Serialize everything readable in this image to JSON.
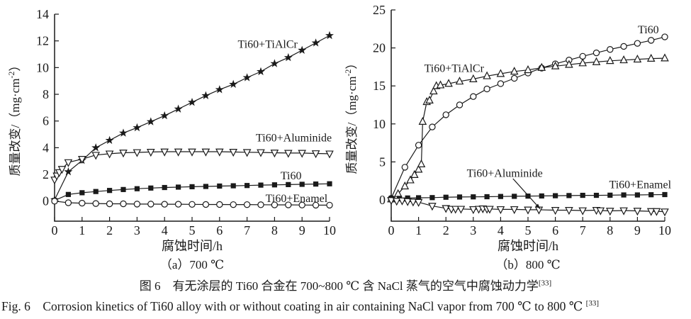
{
  "colors": {
    "ink": "#1a1a1a",
    "background": "#ffffff"
  },
  "captions": {
    "cn": {
      "text": "图 6　有无涂层的 Ti60 合金在 700~800 ℃ 含 NaCl 蒸气的空气中腐蚀动力学",
      "sup": "[33]"
    },
    "en": {
      "text": "Fig. 6　Corrosion kinetics of Ti60 alloy with or without coating in air containing NaCl vapor from 700 ℃ to 800 ℃ ",
      "sup": "[33]"
    }
  },
  "chart_data": [
    {
      "id": "a",
      "type": "line",
      "title": "（a）700 ℃",
      "xlabel": "腐蚀时间/h",
      "ylabel": {
        "main": "质量改变/（mg·cm",
        "sup": "-2",
        "end": "）"
      },
      "xlim": [
        0,
        10
      ],
      "ylim": [
        -1.5,
        14
      ],
      "xticks": [
        0,
        1,
        2,
        3,
        4,
        5,
        6,
        7,
        8,
        9,
        10
      ],
      "yticks": [
        0,
        2,
        4,
        6,
        8,
        10,
        12,
        14
      ],
      "grid": false,
      "legend_position": "in-plot-text-labels",
      "series": [
        {
          "name": "Ti60+TiAlCr",
          "marker": "star",
          "fill": "filled",
          "points": [
            [
              0,
              0.1
            ],
            [
              0.5,
              2.2
            ],
            [
              1,
              3.05
            ],
            [
              1.5,
              4.0
            ],
            [
              2,
              4.55
            ],
            [
              2.5,
              5.1
            ],
            [
              3,
              5.5
            ],
            [
              3.5,
              5.95
            ],
            [
              4,
              6.4
            ],
            [
              4.5,
              6.9
            ],
            [
              5,
              7.4
            ],
            [
              5.5,
              7.9
            ],
            [
              6,
              8.35
            ],
            [
              6.5,
              8.75
            ],
            [
              7,
              9.25
            ],
            [
              7.5,
              9.7
            ],
            [
              8,
              10.3
            ],
            [
              8.5,
              10.75
            ],
            [
              9,
              11.3
            ],
            [
              9.5,
              11.85
            ],
            [
              10,
              12.4
            ]
          ]
        },
        {
          "name": "Ti60+Aluminide",
          "marker": "triangle-down",
          "fill": "open",
          "points": [
            [
              0,
              1.6
            ],
            [
              0.08,
              1.9
            ],
            [
              0.17,
              2.15
            ],
            [
              0.27,
              2.4
            ],
            [
              0.5,
              2.9
            ],
            [
              1,
              3.15
            ],
            [
              1.5,
              3.45
            ],
            [
              2,
              3.55
            ],
            [
              2.5,
              3.62
            ],
            [
              3,
              3.65
            ],
            [
              3.5,
              3.68
            ],
            [
              4,
              3.7
            ],
            [
              4.5,
              3.7
            ],
            [
              5,
              3.7
            ],
            [
              5.5,
              3.7
            ],
            [
              6,
              3.7
            ],
            [
              6.5,
              3.68
            ],
            [
              7,
              3.66
            ],
            [
              7.5,
              3.65
            ],
            [
              8,
              3.62
            ],
            [
              8.5,
              3.6
            ],
            [
              9,
              3.6
            ],
            [
              9.5,
              3.57
            ],
            [
              10,
              3.55
            ]
          ]
        },
        {
          "name": "Ti60",
          "marker": "square",
          "fill": "filled",
          "points": [
            [
              0,
              0.05
            ],
            [
              0.5,
              0.5
            ],
            [
              1,
              0.63
            ],
            [
              1.5,
              0.72
            ],
            [
              2,
              0.8
            ],
            [
              2.5,
              0.87
            ],
            [
              3,
              0.93
            ],
            [
              3.5,
              0.98
            ],
            [
              4,
              1.02
            ],
            [
              4.5,
              1.05
            ],
            [
              5,
              1.08
            ],
            [
              5.5,
              1.1
            ],
            [
              6,
              1.13
            ],
            [
              6.5,
              1.15
            ],
            [
              7,
              1.17
            ],
            [
              7.5,
              1.2
            ],
            [
              8,
              1.22
            ],
            [
              8.5,
              1.24
            ],
            [
              9,
              1.26
            ],
            [
              9.5,
              1.28
            ],
            [
              10,
              1.3
            ]
          ]
        },
        {
          "name": "Ti60+Enamel",
          "marker": "circle",
          "fill": "open",
          "points": [
            [
              0,
              0.0
            ],
            [
              0.5,
              -0.12
            ],
            [
              1,
              -0.15
            ],
            [
              1.5,
              -0.18
            ],
            [
              2,
              -0.2
            ],
            [
              2.5,
              -0.2
            ],
            [
              3,
              -0.22
            ],
            [
              3.5,
              -0.22
            ],
            [
              4,
              -0.23
            ],
            [
              4.5,
              -0.23
            ],
            [
              5,
              -0.24
            ],
            [
              5.5,
              -0.25
            ],
            [
              6,
              -0.25
            ],
            [
              6.5,
              -0.26
            ],
            [
              7,
              -0.26
            ],
            [
              7.5,
              -0.27
            ],
            [
              8,
              -0.28
            ],
            [
              8.5,
              -0.28
            ],
            [
              9,
              -0.29
            ],
            [
              9.5,
              -0.3
            ],
            [
              10,
              -0.3
            ]
          ]
        }
      ],
      "annotations": [
        {
          "text": "Ti60+TiAlCr",
          "x": 7.75,
          "y": 11.75
        },
        {
          "text": "Ti60+Aluminide",
          "x": 8.7,
          "y": 4.75
        },
        {
          "text": "Ti60",
          "x": 8.6,
          "y": 1.9
        },
        {
          "text": "Ti60+Enamel",
          "x": 8.8,
          "y": 0.2
        }
      ]
    },
    {
      "id": "b",
      "type": "line",
      "title": "（b）800 ℃",
      "xlabel": "腐蚀时间/h",
      "ylabel": {
        "main": "质量改变/（mg·cm",
        "sup": "-2",
        "end": "）"
      },
      "xlim": [
        0,
        10
      ],
      "ylim": [
        -2.8,
        25
      ],
      "xticks": [
        0,
        1,
        2,
        3,
        4,
        5,
        6,
        7,
        8,
        9,
        10
      ],
      "yticks": [
        0,
        5,
        10,
        15,
        20,
        25
      ],
      "grid": false,
      "legend_position": "in-plot-text-labels",
      "series": [
        {
          "name": "Ti60",
          "marker": "circle",
          "fill": "open",
          "points": [
            [
              0,
              0.2
            ],
            [
              0.5,
              4.3
            ],
            [
              1,
              7.2
            ],
            [
              1.5,
              9.6
            ],
            [
              2,
              11.2
            ],
            [
              2.5,
              12.5
            ],
            [
              3,
              13.6
            ],
            [
              3.5,
              14.6
            ],
            [
              4,
              15.3
            ],
            [
              4.5,
              16.0
            ],
            [
              5,
              16.7
            ],
            [
              5.5,
              17.35
            ],
            [
              6,
              17.9
            ],
            [
              6.5,
              18.4
            ],
            [
              7,
              18.9
            ],
            [
              7.5,
              19.35
            ],
            [
              8,
              19.8
            ],
            [
              8.5,
              20.2
            ],
            [
              9,
              20.6
            ],
            [
              9.5,
              21.0
            ],
            [
              10,
              21.45
            ]
          ]
        },
        {
          "name": "Ti60+TiAlCr",
          "marker": "triangle-up",
          "fill": "open",
          "points": [
            [
              0,
              0.1
            ],
            [
              0.25,
              0.8
            ],
            [
              0.5,
              1.8
            ],
            [
              0.7,
              2.6
            ],
            [
              0.85,
              3.3
            ],
            [
              1.0,
              4.0
            ],
            [
              1.1,
              4.7
            ],
            [
              1.15,
              10.3
            ],
            [
              1.3,
              12.9
            ],
            [
              1.4,
              13.1
            ],
            [
              1.55,
              14.3
            ],
            [
              1.65,
              15.0
            ],
            [
              1.8,
              15.1
            ],
            [
              2.1,
              15.3
            ],
            [
              2.5,
              15.6
            ],
            [
              3,
              15.9
            ],
            [
              3.5,
              16.3
            ],
            [
              4,
              16.6
            ],
            [
              4.5,
              16.9
            ],
            [
              5,
              17.1
            ],
            [
              5.5,
              17.4
            ],
            [
              6,
              17.6
            ],
            [
              6.5,
              17.8
            ],
            [
              7,
              18.0
            ],
            [
              7.5,
              18.15
            ],
            [
              8,
              18.3
            ],
            [
              8.5,
              18.4
            ],
            [
              9,
              18.5
            ],
            [
              9.5,
              18.6
            ],
            [
              10,
              18.65
            ]
          ]
        },
        {
          "name": "Ti60+Enamel",
          "marker": "square",
          "fill": "filled",
          "points": [
            [
              0,
              0.2
            ],
            [
              0.3,
              0.2
            ],
            [
              0.6,
              0.25
            ],
            [
              1,
              0.28
            ],
            [
              1.5,
              0.3
            ],
            [
              2,
              0.35
            ],
            [
              2.5,
              0.38
            ],
            [
              3,
              0.4
            ],
            [
              3.5,
              0.42
            ],
            [
              4,
              0.45
            ],
            [
              4.5,
              0.47
            ],
            [
              5,
              0.5
            ],
            [
              5.5,
              0.52
            ],
            [
              6,
              0.55
            ],
            [
              6.5,
              0.57
            ],
            [
              7,
              0.6
            ],
            [
              7.5,
              0.6
            ],
            [
              8,
              0.62
            ],
            [
              8.5,
              0.65
            ],
            [
              9,
              0.65
            ],
            [
              9.5,
              0.68
            ],
            [
              10,
              0.7
            ]
          ]
        },
        {
          "name": "Ti60+Aluminide",
          "marker": "triangle-down",
          "fill": "open",
          "points": [
            [
              0,
              -0.05
            ],
            [
              0.2,
              -0.15
            ],
            [
              0.4,
              -0.1
            ],
            [
              0.6,
              -0.2
            ],
            [
              0.8,
              -0.25
            ],
            [
              1,
              -0.3
            ],
            [
              1.5,
              -0.8
            ],
            [
              2,
              -1.1
            ],
            [
              2.2,
              -1.2
            ],
            [
              2.35,
              -1.2
            ],
            [
              2.55,
              -1.2
            ],
            [
              3,
              -1.25
            ],
            [
              3.2,
              -1.2
            ],
            [
              3.35,
              -1.15
            ],
            [
              3.5,
              -1.2
            ],
            [
              3.6,
              -1.2
            ],
            [
              4,
              -1.25
            ],
            [
              4.5,
              -1.25
            ],
            [
              5,
              -1.3
            ],
            [
              5.4,
              -1.3
            ],
            [
              6,
              -1.35
            ],
            [
              6.5,
              -1.35
            ],
            [
              7,
              -1.4
            ],
            [
              7.5,
              -1.35
            ],
            [
              7.65,
              -1.4
            ],
            [
              8,
              -1.45
            ],
            [
              8.5,
              -1.4
            ],
            [
              9,
              -1.45
            ],
            [
              9.5,
              -1.5
            ],
            [
              9.7,
              -1.5
            ],
            [
              10,
              -1.55
            ]
          ]
        }
      ],
      "annotations": [
        {
          "text": "Ti60",
          "x": 9.4,
          "y": 22.4
        },
        {
          "text": "Ti60+TiAlCr",
          "x": 2.3,
          "y": 17.3
        },
        {
          "text": "Ti60+Aluminide",
          "x": 4.15,
          "y": 3.5,
          "arrow": {
            "from": [
              4.45,
              2.8
            ],
            "to": [
              5.45,
              -1.2
            ]
          }
        },
        {
          "text": "Ti60+Enamel",
          "x": 9.1,
          "y": 2.0
        }
      ]
    }
  ]
}
